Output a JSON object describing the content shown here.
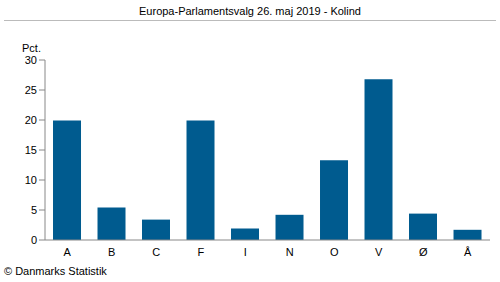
{
  "chart_data": {
    "type": "bar",
    "title": "Europa-Parlamentsvalg 26. maj 2019 - Kolind",
    "y_label": "Pct.",
    "source": "© Danmarks Statistik",
    "categories": [
      "A",
      "B",
      "C",
      "F",
      "I",
      "N",
      "O",
      "V",
      "Ø",
      "Å"
    ],
    "values": [
      19.9,
      5.4,
      3.4,
      19.9,
      1.9,
      4.2,
      13.3,
      26.8,
      4.4,
      1.7
    ],
    "color": "#005b8f",
    "ylim": [
      0,
      30
    ],
    "yticks": [
      0,
      5,
      10,
      15,
      20,
      25,
      30
    ],
    "grid": false
  }
}
